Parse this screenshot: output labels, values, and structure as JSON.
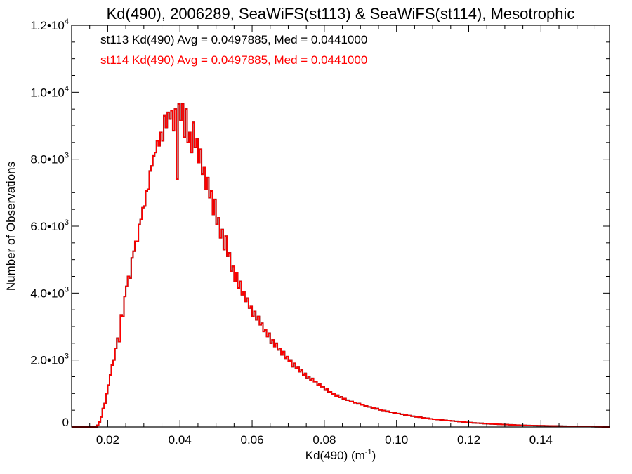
{
  "chart_data": {
    "type": "histogram",
    "title": "Kd(490), 2006289, SeaWiFS(st113) & SeaWiFS(st114), Mesotrophic",
    "xlabel_main": "Kd(490) (m",
    "xlabel_sup": "-1",
    "xlabel_end": ")",
    "ylabel": "Number of Observations",
    "xlim": [
      0.01,
      0.159
    ],
    "ylim": [
      0,
      12000
    ],
    "x_ticks": [
      {
        "value": 0.02,
        "label": "0.02"
      },
      {
        "value": 0.04,
        "label": "0.04"
      },
      {
        "value": 0.06,
        "label": "0.06"
      },
      {
        "value": 0.08,
        "label": "0.08"
      },
      {
        "value": 0.1,
        "label": "0.10"
      },
      {
        "value": 0.12,
        "label": "0.12"
      },
      {
        "value": 0.14,
        "label": "0.14"
      }
    ],
    "y_ticks": [
      {
        "value": 0,
        "mant": "0",
        "exp": ""
      },
      {
        "value": 2000,
        "mant": "2.0•10",
        "exp": "3"
      },
      {
        "value": 4000,
        "mant": "4.0•10",
        "exp": "3"
      },
      {
        "value": 6000,
        "mant": "6.0•10",
        "exp": "3"
      },
      {
        "value": 8000,
        "mant": "8.0•10",
        "exp": "3"
      },
      {
        "value": 10000,
        "mant": "1.0•10",
        "exp": "4"
      },
      {
        "value": 12000,
        "mant": "1.2•10",
        "exp": "4"
      }
    ],
    "annotations": [
      {
        "text": "st113 Kd(490) Avg = 0.0497885, Med = 0.0441000",
        "color": "#000000"
      },
      {
        "text": "st114 Kd(490) Avg = 0.0497885, Med = 0.0441000",
        "color": "#ff0000"
      }
    ],
    "bin_width": 0.0005,
    "bin_start": 0.01,
    "series": [
      {
        "name": "st113",
        "color": "#000000",
        "counts": [
          0,
          0,
          0,
          0,
          0,
          0,
          0,
          0,
          0,
          0,
          0,
          0,
          0,
          0,
          50,
          150,
          300,
          550,
          700,
          1000,
          1250,
          1550,
          1850,
          2000,
          2350,
          2650,
          2550,
          3350,
          3300,
          3900,
          4200,
          4500,
          4450,
          5050,
          5250,
          5550,
          5550,
          6050,
          6200,
          6550,
          6600,
          7050,
          7100,
          7650,
          7800,
          8100,
          8200,
          8550,
          8400,
          8800,
          8550,
          9300,
          8950,
          9400,
          9200,
          9450,
          8850,
          9500,
          7400,
          9650,
          9150,
          9650,
          8650,
          9500,
          8500,
          8800,
          8200,
          9100,
          8350,
          8600,
          7900,
          8300,
          7550,
          7750,
          7100,
          7450,
          6850,
          7050,
          6350,
          6800,
          6050,
          6250,
          5650,
          5900,
          5300,
          5700,
          5100,
          5200,
          4650,
          4800,
          4350,
          4600,
          4150,
          4350,
          3950,
          4050,
          3750,
          3850,
          3550,
          3600,
          3300,
          3450,
          3200,
          3300,
          3050,
          3100,
          2850,
          2900,
          2700,
          2800,
          2500,
          2600,
          2400,
          2500,
          2300,
          2350,
          2150,
          2250,
          2050,
          2100,
          1950,
          2000,
          1800,
          1900,
          1750,
          1800,
          1650,
          1700,
          1550,
          1600,
          1450,
          1500,
          1400,
          1450,
          1350,
          1350,
          1250,
          1300,
          1200,
          1200,
          1100,
          1150,
          1050,
          1050,
          980,
          1000,
          920,
          950,
          880,
          900,
          840,
          850,
          800,
          800,
          760,
          760,
          720,
          730,
          690,
          700,
          660,
          660,
          630,
          630,
          600,
          600,
          570,
          570,
          540,
          550,
          510,
          520,
          490,
          490,
          460,
          470,
          440,
          440,
          420,
          420,
          400,
          400,
          380,
          380,
          360,
          360,
          340,
          340,
          320,
          320,
          300,
          300,
          290,
          290,
          270,
          270,
          260,
          260,
          240,
          240,
          230,
          230,
          220,
          220,
          210,
          210,
          200,
          200,
          190,
          190,
          180,
          180,
          170,
          170,
          160,
          160,
          150,
          150,
          140,
          140,
          130,
          130,
          120,
          120,
          115,
          115,
          110,
          110,
          100,
          100,
          95,
          95,
          90,
          90,
          85,
          85,
          80,
          80,
          75,
          75,
          70,
          70,
          65,
          65,
          60,
          60,
          55,
          55,
          50,
          50,
          48,
          48,
          45,
          45,
          42,
          42,
          40,
          40,
          38,
          38,
          36,
          36,
          34,
          34,
          32,
          32,
          30,
          30,
          28,
          28,
          26,
          26,
          24,
          24,
          22,
          22,
          20,
          20,
          18,
          18,
          16,
          16,
          14,
          14,
          12,
          12,
          10,
          10,
          8,
          8,
          6,
          6,
          4,
          4
        ]
      },
      {
        "name": "st114",
        "color": "#ff0000",
        "same_as": "st113"
      }
    ]
  }
}
